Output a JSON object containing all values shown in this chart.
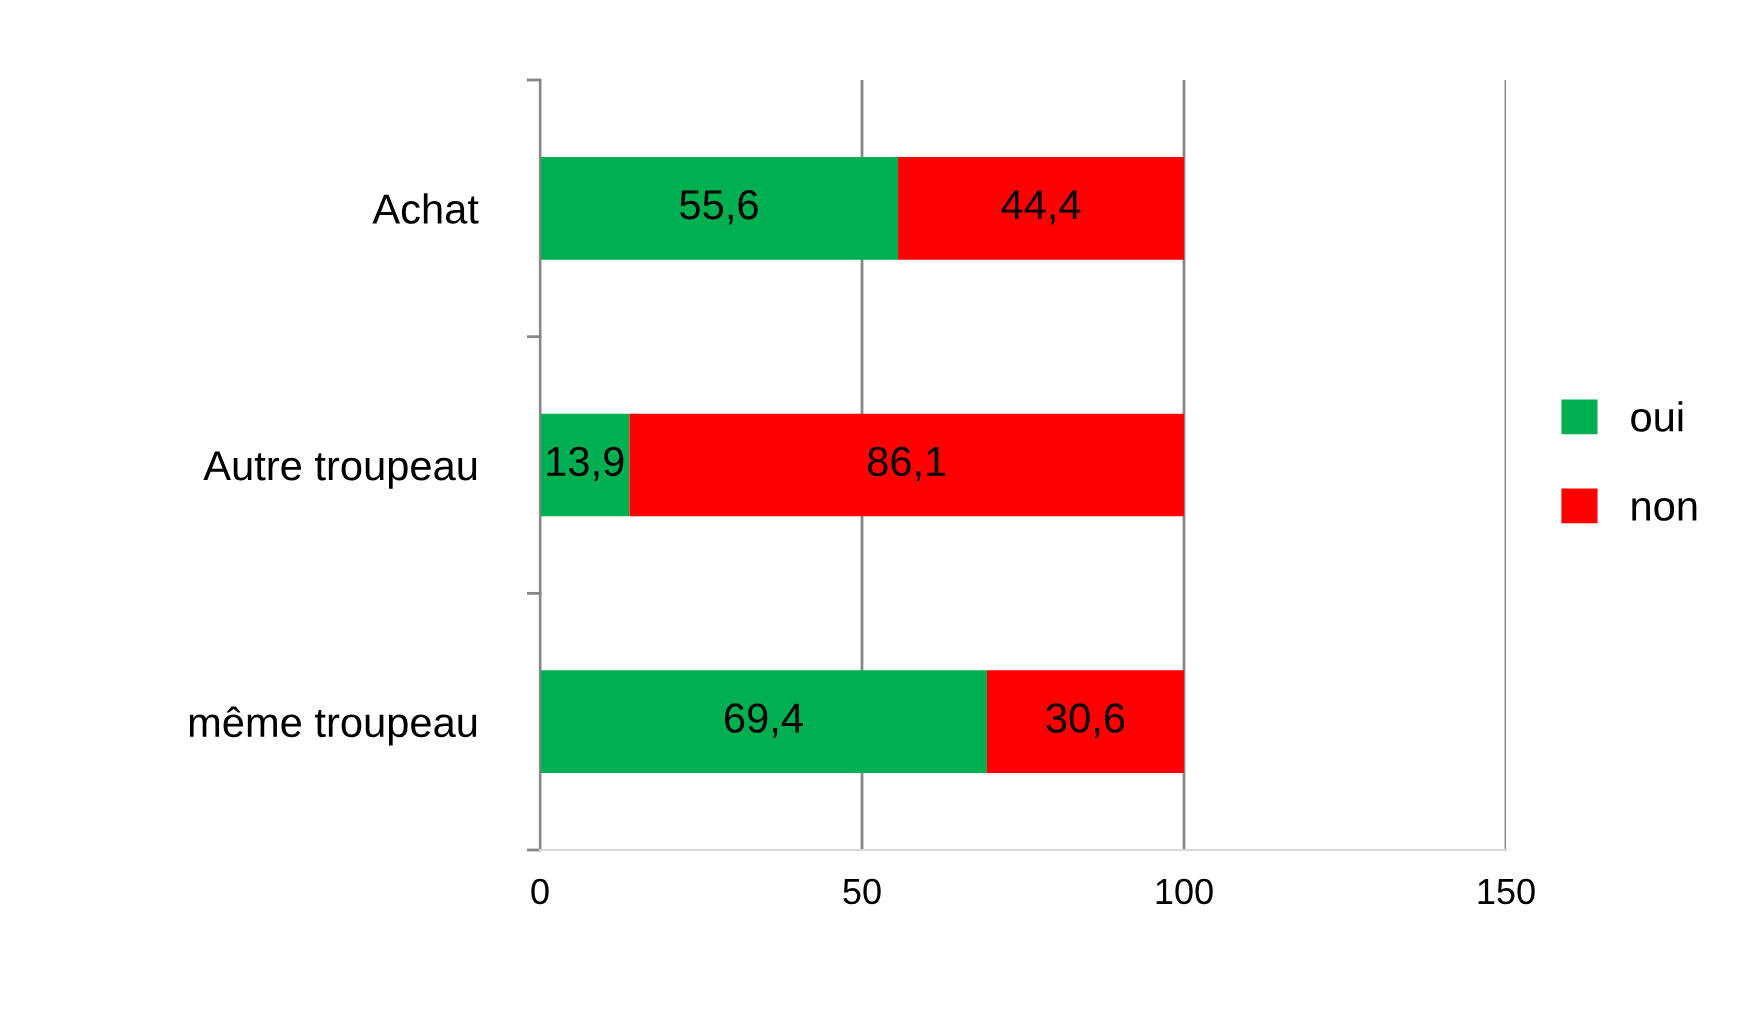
{
  "chart_data": {
    "type": "bar",
    "orientation": "horizontal",
    "stacked": true,
    "categories": [
      "Achat",
      "Autre troupeau",
      "même troupeau"
    ],
    "series": [
      {
        "name": "oui",
        "color": "#00b050",
        "values": [
          55.6,
          13.9,
          69.4
        ],
        "value_labels": [
          "55,6",
          "13,9",
          "69,4"
        ]
      },
      {
        "name": "non",
        "color": "#ff0000",
        "values": [
          44.4,
          86.1,
          30.6
        ],
        "value_labels": [
          "44,4",
          "86,1",
          "30,6"
        ]
      }
    ],
    "xlim": [
      0,
      150
    ],
    "xticks": [
      0,
      50,
      100,
      150
    ],
    "grid": "x",
    "legend": "right"
  }
}
